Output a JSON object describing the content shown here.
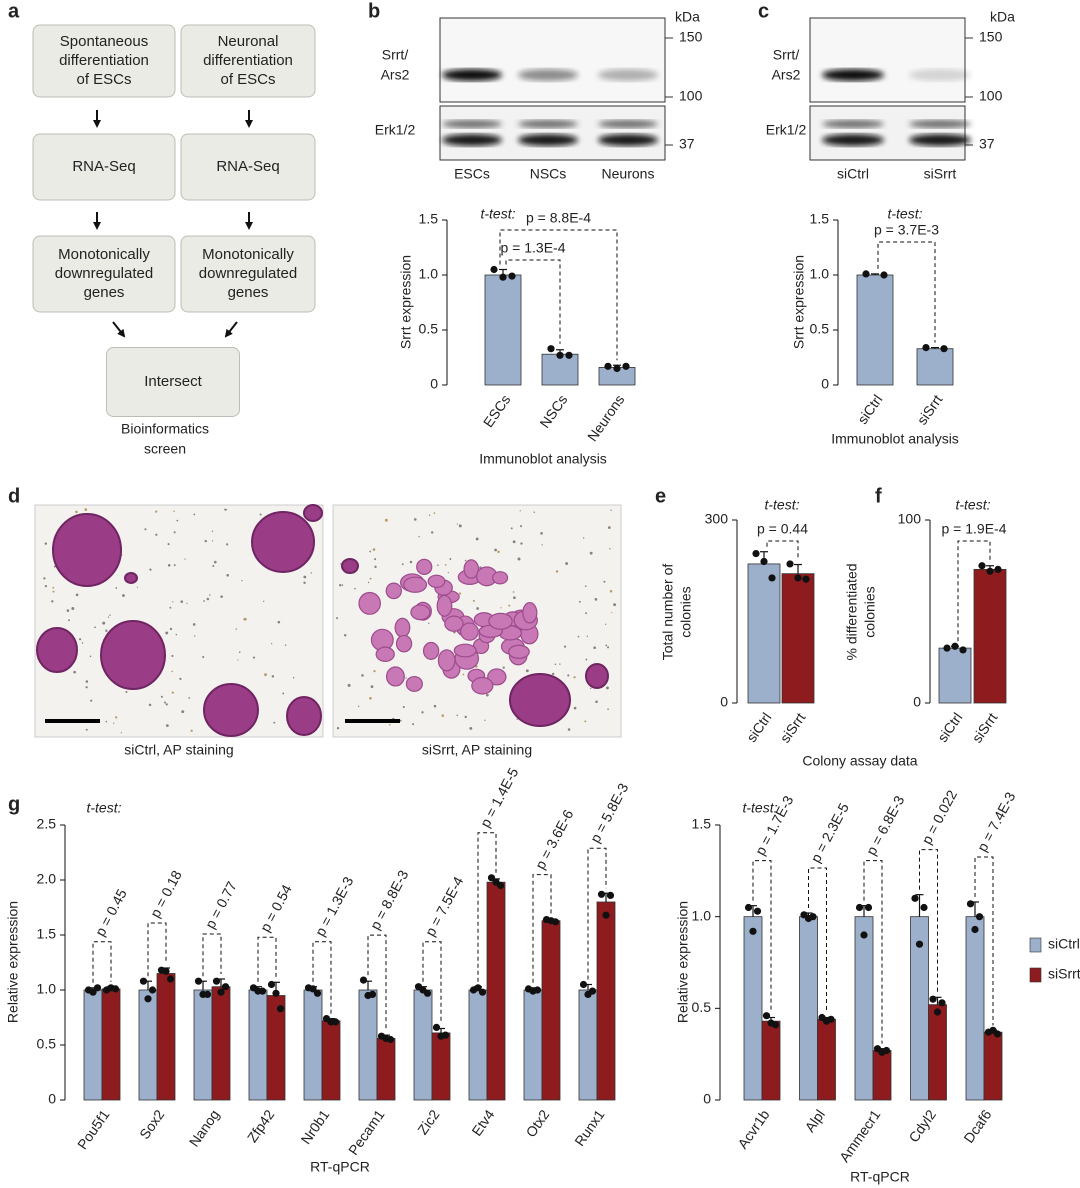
{
  "panel_labels": [
    "a",
    "b",
    "c",
    "d",
    "e",
    "f",
    "g"
  ],
  "flowchart": {
    "nodes": [
      [
        "Spontaneous",
        "differentiation",
        "of ESCs"
      ],
      [
        "Neuronal",
        "differentiation",
        "of ESCs"
      ],
      [
        "RNA-Seq"
      ],
      [
        "RNA-Seq"
      ],
      [
        "Monotonically",
        "downregulated",
        "genes"
      ],
      [
        "Monotonically",
        "downregulated",
        "genes"
      ],
      [
        "Intersect"
      ]
    ],
    "caption": [
      "Bioinformatics",
      "screen"
    ]
  },
  "blots": [
    {
      "kda": "kDa",
      "markers": [
        "150",
        "100",
        "37"
      ],
      "rows": [
        [
          "Srrt/",
          "Ars2"
        ],
        [
          "Erk1/2"
        ]
      ],
      "lanes": [
        "ESCs",
        "NSCs",
        "Neurons"
      ]
    },
    {
      "kda": "kDa",
      "markers": [
        "150",
        "100",
        "37"
      ],
      "rows": [
        [
          "Srrt/",
          "Ars2"
        ],
        [
          "Erk1/2"
        ]
      ],
      "lanes": [
        "siCtrl",
        "siSrrt"
      ]
    }
  ],
  "micrographs": {
    "captions": [
      "siCtrl, AP staining",
      "siSrrt, AP staining"
    ]
  },
  "colony_xlabel": "Colony assay data",
  "chart_data": [
    {
      "type": "bar",
      "ylabel": "Srrt expression",
      "xlabel": "Immunoblot analysis",
      "test_label": "t-test:",
      "categories": [
        "ESCs",
        "NSCs",
        "Neurons"
      ],
      "values": [
        1.0,
        0.28,
        0.16
      ],
      "errors": [
        0.05,
        0.04,
        0.02
      ],
      "points": [
        [
          1.05,
          0.98,
          0.99
        ],
        [
          0.33,
          0.27,
          0.27
        ],
        [
          0.17,
          0.15,
          0.17
        ]
      ],
      "color": "#9cafcb",
      "p_values": [
        "p = 1.3E-4",
        "p = 8.8E-4"
      ],
      "ylim": [
        0,
        1.5
      ],
      "yticks": [
        0,
        0.5,
        {
          "value": 1,
          "label": "1.0"
        },
        1.5
      ]
    },
    {
      "type": "bar",
      "ylabel": "Srrt expression",
      "xlabel": "Immunoblot analysis",
      "test_label": "t-test:",
      "categories": [
        "siCtrl",
        "siSrrt"
      ],
      "values": [
        1.0,
        0.33
      ],
      "errors": [
        0.01,
        0.01
      ],
      "points": [
        [
          1.01,
          1.0
        ],
        [
          0.34,
          0.33
        ]
      ],
      "color": "#9cafcb",
      "p_values": [
        "p = 3.7E-3"
      ],
      "ylim": [
        0,
        1.5
      ],
      "yticks": [
        0,
        0.5,
        {
          "value": 1,
          "label": "1.0"
        },
        1.5
      ]
    },
    {
      "type": "bar",
      "ylabel": [
        "Total number of",
        "colonies"
      ],
      "test_label": "t-test:",
      "categories": [
        "siCtrl",
        "siSrrt"
      ],
      "values": [
        228,
        212
      ],
      "errors": [
        20,
        15
      ],
      "points": [
        [
          245,
          232,
          205
        ],
        [
          228,
          205,
          203
        ]
      ],
      "colors": [
        "#9cafcb",
        "#8e1c1f"
      ],
      "p_values": [
        "p = 0.44"
      ],
      "ylim": [
        0,
        300
      ],
      "yticks": [
        0,
        300
      ]
    },
    {
      "type": "bar",
      "ylabel": [
        "% differentiated",
        "colonies"
      ],
      "test_label": "t-test:",
      "categories": [
        "siCtrl",
        "siSrrt"
      ],
      "values": [
        30,
        73
      ],
      "errors": [
        1,
        2
      ],
      "points": [
        [
          30,
          31,
          29
        ],
        [
          75,
          72,
          73
        ]
      ],
      "colors": [
        "#9cafcb",
        "#8e1c1f"
      ],
      "p_values": [
        "p = 1.9E-4"
      ],
      "ylim": [
        0,
        100
      ],
      "yticks": [
        0,
        100
      ]
    },
    {
      "type": "grouped_bar",
      "ylabel": "Relative expression",
      "xlabel": "RT-qPCR",
      "test_label": "t-test:",
      "categories": [
        "Pou5f1",
        "Sox2",
        "Nanog",
        "Zfp42",
        "Nr0b1",
        "Pecam1",
        "Zic2",
        "Etv4",
        "Otx2",
        "Runx1"
      ],
      "series": [
        {
          "color": "#9cafcb",
          "values": [
            1,
            1,
            1,
            1,
            1,
            1,
            1,
            1,
            1,
            1
          ],
          "errors": [
            0.02,
            0.08,
            0.08,
            0.03,
            0.03,
            0.08,
            0.03,
            0.03,
            0.02,
            0.05
          ],
          "points": [
            [
              1.0,
              0.98,
              1.02
            ],
            [
              1.08,
              0.92,
              1.0
            ],
            [
              1.08,
              0.96,
              0.96
            ],
            [
              1.02,
              0.99,
              0.99
            ],
            [
              1.02,
              1.01,
              0.97
            ],
            [
              1.09,
              0.95,
              0.96
            ],
            [
              1.03,
              1.0,
              0.97
            ],
            [
              1.0,
              1.02,
              0.98
            ],
            [
              1.01,
              0.99,
              1.0
            ],
            [
              1.05,
              0.96,
              0.99
            ]
          ]
        },
        {
          "color": "#8e1c1f",
          "values": [
            1.01,
            1.15,
            1.03,
            0.95,
            0.72,
            0.56,
            0.61,
            1.98,
            1.63,
            1.8
          ],
          "errors": [
            0.02,
            0.05,
            0.07,
            0.12,
            0.02,
            0.03,
            0.04,
            0.03,
            0.01,
            0.08
          ],
          "points": [
            [
              1.0,
              1.02,
              1.01
            ],
            [
              1.18,
              1.17,
              1.1
            ],
            [
              1.08,
              0.98,
              1.03
            ],
            [
              1.05,
              0.97,
              0.83
            ],
            [
              0.74,
              0.71,
              0.71
            ],
            [
              0.58,
              0.56,
              0.55
            ],
            [
              0.66,
              0.58,
              0.59
            ],
            [
              2.02,
              1.98,
              1.95
            ],
            [
              1.64,
              1.63,
              1.62
            ],
            [
              1.87,
              1.68,
              1.86
            ]
          ]
        }
      ],
      "p_values": [
        "p = 0.45",
        "p = 0.18",
        "p = 0.77",
        "p = 0.54",
        "p = 1.3E-3",
        "p = 8.8E-3",
        "p = 7.5E-4",
        "p = 1.4E-5",
        "p = 3.6E-6",
        "p = 5.8E-3"
      ],
      "ylim": [
        0,
        2.5
      ],
      "yticks": [
        0,
        0.5,
        {
          "value": 1,
          "label": "1.0"
        },
        1.5,
        {
          "value": 2,
          "label": "2.0"
        },
        2.5
      ]
    },
    {
      "type": "grouped_bar",
      "ylabel": "Relative expression",
      "xlabel": "RT-qPCR",
      "test_label": "t-test:",
      "categories": [
        "Acvr1b",
        "Alpl",
        "Ammecr1",
        "Cdyl2",
        "Dcaf6"
      ],
      "series": [
        {
          "name": "siCtrl",
          "color": "#9cafcb",
          "values": [
            1,
            1,
            1,
            1,
            1
          ],
          "errors": [
            0.06,
            0.02,
            0.06,
            0.12,
            0.08
          ],
          "points": [
            [
              1.05,
              0.92,
              1.03
            ],
            [
              1.01,
              0.99,
              1.0
            ],
            [
              1.05,
              0.9,
              1.05
            ],
            [
              1.1,
              0.85,
              1.05
            ],
            [
              1.07,
              0.93,
              1.0
            ]
          ]
        },
        {
          "name": "siSrrt",
          "color": "#8e1c1f",
          "values": [
            0.43,
            0.44,
            0.27,
            0.52,
            0.37
          ],
          "errors": [
            0.02,
            0.01,
            0.01,
            0.04,
            0.01
          ],
          "points": [
            [
              0.46,
              0.42,
              0.41
            ],
            [
              0.45,
              0.43,
              0.44
            ],
            [
              0.28,
              0.26,
              0.27
            ],
            [
              0.55,
              0.48,
              0.53
            ],
            [
              0.37,
              0.38,
              0.36
            ]
          ]
        }
      ],
      "p_values": [
        "p = 1.7E-3",
        "p = 2.3E-5",
        "p = 6.8E-3",
        "p = 0.022",
        "p = 7.4E-3"
      ],
      "legend": "right",
      "ylim": [
        0,
        1.5
      ],
      "yticks": [
        0,
        0.5,
        {
          "value": 1,
          "label": "1.0"
        },
        1.5
      ]
    }
  ]
}
